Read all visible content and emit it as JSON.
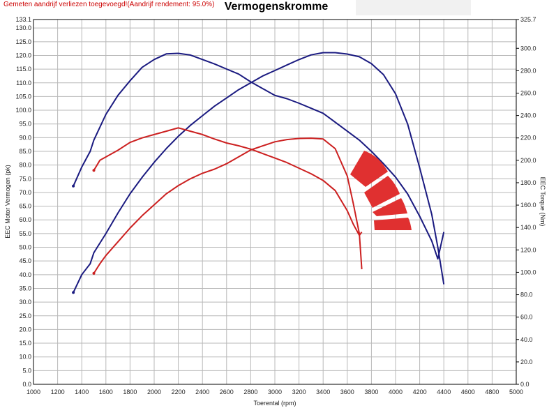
{
  "header": {
    "note": "Gemeten aandrijf verliezen toegevoegd!(Aandrijf rendement: 95.0%)",
    "title": "Vermogenskromme"
  },
  "colors": {
    "power_high": "#1a1a80",
    "power_low": "#cc2020",
    "logo": "#e03030"
  },
  "chart_data": {
    "type": "line",
    "title": "Vermogenskromme",
    "xlabel": "Toerental (rpm)",
    "ylabel": "EEC Motor Vermogen (pk)",
    "y2label": "EEC Torque (Nm)",
    "xlim": [
      1000,
      5000
    ],
    "ylim": [
      0,
      133.1
    ],
    "y2lim": [
      0,
      325.7
    ],
    "grid": true,
    "x_ticks": [
      "1000",
      "1200",
      "1400",
      "1600",
      "1800",
      "2000",
      "2200",
      "2400",
      "2600",
      "2800",
      "3000",
      "3200",
      "3400",
      "3600",
      "3800",
      "4000",
      "4200",
      "4400",
      "4600",
      "4800",
      "5000"
    ],
    "y_ticks": [
      "0.0",
      "5.0",
      "10.0",
      "15.0",
      "20.0",
      "25.0",
      "30.0",
      "35.0",
      "40.0",
      "45.0",
      "50.0",
      "55.0",
      "60.0",
      "65.0",
      "70.0",
      "75.0",
      "80.0",
      "85.0",
      "90.0",
      "95.0",
      "100.0",
      "105.0",
      "110.0",
      "115.0",
      "120.0",
      "125.0",
      "130.0",
      "133.1"
    ],
    "y2_ticks": [
      "0.0",
      "20.0",
      "40.0",
      "60.0",
      "80.0",
      "100.0",
      "120.0",
      "140.0",
      "160.0",
      "180.0",
      "200.0",
      "220.0",
      "240.0",
      "260.0",
      "280.0",
      "300.0",
      "325.7"
    ],
    "series": [
      {
        "color": "#1a1a80",
        "axis": "left",
        "x": [
          1330,
          1400,
          1470,
          1500,
          1600,
          1700,
          1800,
          1900,
          2000,
          2100,
          2200,
          2300,
          2400,
          2500,
          2600,
          2700,
          2800,
          2900,
          3000,
          3100,
          3200,
          3300,
          3400,
          3500,
          3600,
          3700,
          3800,
          3900,
          4000,
          4100,
          4200,
          4300,
          4350,
          4400
        ],
        "y": [
          33.5,
          40,
          44,
          48,
          55,
          62.5,
          69.5,
          75.5,
          81,
          86,
          90.5,
          94.5,
          98,
          101.5,
          104.5,
          107.5,
          110,
          112.5,
          114.5,
          116.5,
          118.5,
          120.2,
          121,
          121,
          120.5,
          119.5,
          117,
          113,
          106,
          95,
          79,
          62,
          50,
          36.5
        ]
      },
      {
        "color": "#1a1a80",
        "axis": "right",
        "x": [
          1330,
          1400,
          1470,
          1500,
          1600,
          1700,
          1800,
          1900,
          2000,
          2100,
          2200,
          2300,
          2400,
          2500,
          2600,
          2700,
          2800,
          2900,
          3000,
          3100,
          3200,
          3300,
          3400,
          3500,
          3600,
          3700,
          3800,
          3900,
          4000,
          4100,
          4200,
          4300,
          4350,
          4400
        ],
        "y": [
          177,
          194,
          208,
          218,
          241,
          258,
          271,
          283,
          290,
          295,
          295.5,
          294,
          290,
          286,
          281.5,
          277,
          270,
          264,
          258,
          255,
          251,
          246.5,
          242,
          234,
          226,
          218,
          208,
          197,
          185,
          170,
          150,
          128,
          112,
          136
        ]
      },
      {
        "color": "#cc2020",
        "axis": "left",
        "x": [
          1500,
          1550,
          1600,
          1700,
          1800,
          1900,
          2000,
          2100,
          2200,
          2300,
          2400,
          2500,
          2600,
          2700,
          2800,
          2900,
          3000,
          3100,
          3200,
          3300,
          3400,
          3500,
          3600,
          3650,
          3700,
          3720
        ],
        "y": [
          40.5,
          44,
          47,
          52,
          57,
          61.5,
          65.5,
          69.5,
          72.5,
          75,
          77,
          78.5,
          80.5,
          83,
          85.5,
          87,
          88.5,
          89.3,
          89.7,
          89.8,
          89.5,
          86,
          76,
          66,
          55,
          42
        ]
      },
      {
        "color": "#cc2020",
        "axis": "right",
        "x": [
          1500,
          1550,
          1600,
          1700,
          1800,
          1900,
          2000,
          2100,
          2200,
          2300,
          2400,
          2500,
          2600,
          2700,
          2800,
          2900,
          3000,
          3100,
          3200,
          3300,
          3400,
          3500,
          3600,
          3650,
          3700,
          3720
        ],
        "y": [
          191,
          200,
          203,
          209,
          216,
          220,
          223,
          226,
          229,
          226,
          223,
          219,
          215.5,
          213,
          210,
          206,
          202,
          198,
          193,
          188,
          182,
          173,
          155,
          143,
          133,
          136
        ]
      }
    ]
  }
}
